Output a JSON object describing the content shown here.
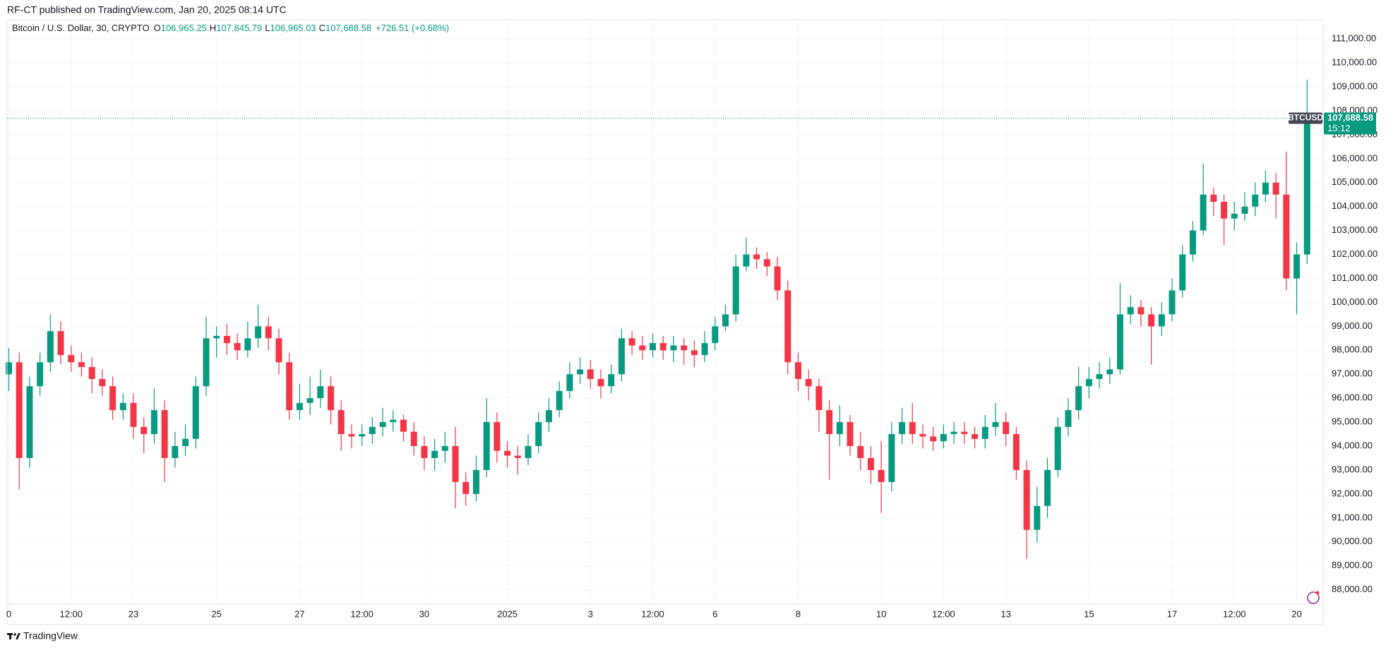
{
  "header": {
    "title": "RF-CT published on TradingView.com, Jan 20, 2025 08:14 UTC"
  },
  "legend": {
    "symbol": "Bitcoin / U.S. Dollar, 30, CRYPTO",
    "items": [
      {
        "label": "O",
        "value": "106,965.25"
      },
      {
        "label": "H",
        "value": "107,845.79"
      },
      {
        "label": "L",
        "value": "106,965.03"
      },
      {
        "label": "C",
        "value": "107,688.58"
      }
    ],
    "change": "+726.51 (+0.68%)"
  },
  "footer": {
    "brand": "TradingView"
  },
  "chart_data": {
    "type": "candlestick",
    "up_color": "#089981",
    "down_color": "#f23645",
    "grid": true,
    "categories": [
      "0",
      null,
      null,
      null,
      null,
      null,
      "12:00",
      null,
      null,
      null,
      null,
      null,
      "23",
      null,
      null,
      null,
      null,
      null,
      null,
      null,
      "25",
      null,
      null,
      null,
      null,
      null,
      null,
      null,
      "27",
      null,
      null,
      null,
      null,
      null,
      "12:00",
      null,
      null,
      null,
      null,
      null,
      "30",
      null,
      null,
      null,
      null,
      null,
      null,
      null,
      "2025",
      null,
      null,
      null,
      null,
      null,
      null,
      null,
      "3",
      null,
      null,
      null,
      null,
      null,
      "12:00",
      null,
      null,
      null,
      null,
      null,
      "6",
      null,
      null,
      null,
      null,
      null,
      null,
      null,
      "8",
      null,
      null,
      null,
      null,
      null,
      null,
      null,
      "10",
      null,
      null,
      null,
      null,
      null,
      "12:00",
      null,
      null,
      null,
      null,
      null,
      "13",
      null,
      null,
      null,
      null,
      null,
      null,
      null,
      "15",
      null,
      null,
      null,
      null,
      null,
      null,
      null,
      "17",
      null,
      null,
      null,
      null,
      null,
      "12:00",
      null,
      null,
      null,
      null,
      null,
      "20",
      null
    ],
    "open": [
      97000,
      97500,
      93500,
      96500,
      97500,
      98800,
      97800,
      97500,
      97300,
      96800,
      96500,
      95500,
      95800,
      94800,
      94500,
      95500,
      93500,
      94000,
      94300,
      96500,
      98500,
      98600,
      98300,
      98000,
      98500,
      99000,
      98500,
      97500,
      95500,
      95800,
      96000,
      96500,
      95500,
      94500,
      94400,
      94500,
      94800,
      95000,
      95100,
      94600,
      94000,
      93500,
      93800,
      94000,
      92500,
      92000,
      93000,
      95000,
      93800,
      93600,
      93500,
      94000,
      95000,
      95500,
      96300,
      97000,
      97200,
      96800,
      96500,
      97000,
      98500,
      98200,
      98000,
      98300,
      98000,
      98200,
      98000,
      97800,
      98300,
      99000,
      99500,
      101500,
      102000,
      101800,
      101500,
      100500,
      97500,
      96800,
      96500,
      95500,
      94500,
      95000,
      94000,
      93500,
      93000,
      92500,
      94500,
      95000,
      94500,
      94400,
      94200,
      94500,
      94600,
      94500,
      94300,
      94800,
      95000,
      94500,
      93000,
      90500,
      91500,
      93000,
      94800,
      95500,
      96500,
      96800,
      97000,
      97200,
      99500,
      99800,
      99500,
      99000,
      99500,
      100500,
      102000,
      103000,
      104500,
      104200,
      103500,
      103700,
      104000,
      104500,
      105000,
      104500,
      101000,
      102000
    ],
    "high": [
      98100,
      97900,
      96900,
      97900,
      99500,
      99200,
      98200,
      97900,
      97700,
      97200,
      96900,
      96200,
      96200,
      95200,
      96400,
      95900,
      94600,
      94900,
      96900,
      99400,
      99000,
      99100,
      98700,
      99200,
      99900,
      99400,
      98900,
      97900,
      96600,
      96900,
      97200,
      96900,
      95900,
      94900,
      94900,
      95200,
      95600,
      95500,
      95300,
      95000,
      94400,
      94300,
      94600,
      94800,
      92900,
      93600,
      96000,
      95400,
      94200,
      94000,
      94500,
      95400,
      96000,
      96700,
      97500,
      97700,
      97600,
      97200,
      97400,
      98900,
      98800,
      98600,
      98700,
      98600,
      98600,
      98500,
      98400,
      98800,
      99400,
      99900,
      102000,
      102700,
      102300,
      102100,
      101900,
      100900,
      97900,
      97200,
      96800,
      95900,
      95700,
      95300,
      94600,
      94000,
      94200,
      95000,
      95600,
      95800,
      94900,
      94800,
      94900,
      95000,
      95000,
      94800,
      95300,
      95800,
      95400,
      94800,
      93400,
      92300,
      93500,
      95200,
      96000,
      97300,
      97300,
      97500,
      97700,
      100800,
      100300,
      100100,
      99800,
      100000,
      101000,
      102400,
      103400,
      105800,
      104800,
      104500,
      104200,
      104600,
      105000,
      105500,
      105400,
      106300,
      102500,
      109300
    ],
    "low": [
      96300,
      92200,
      93100,
      96100,
      97100,
      97400,
      97100,
      96900,
      96200,
      96100,
      95100,
      95100,
      94300,
      93700,
      94100,
      92500,
      93100,
      93600,
      93900,
      96100,
      97700,
      97800,
      97600,
      97700,
      98100,
      98000,
      97000,
      95100,
      95100,
      95300,
      95600,
      94900,
      93800,
      93900,
      94000,
      94100,
      94400,
      94600,
      94200,
      93600,
      93000,
      93000,
      93300,
      91400,
      91500,
      91700,
      92700,
      93300,
      93100,
      92800,
      93200,
      93700,
      94600,
      95200,
      96000,
      96600,
      96400,
      96000,
      96200,
      96700,
      97800,
      97600,
      97700,
      97600,
      97500,
      97400,
      97300,
      97500,
      98000,
      98800,
      99200,
      101300,
      101400,
      101100,
      100100,
      97000,
      96300,
      95900,
      94600,
      92600,
      94000,
      93600,
      93000,
      92400,
      91200,
      92100,
      94100,
      94100,
      93900,
      93800,
      93900,
      94100,
      94100,
      93900,
      93900,
      94400,
      94000,
      92600,
      89300,
      90000,
      91000,
      92700,
      94400,
      95100,
      96000,
      96400,
      96600,
      97000,
      99100,
      99000,
      97400,
      98600,
      99200,
      100200,
      101700,
      102800,
      103600,
      102400,
      103000,
      103400,
      103600,
      104200,
      103500,
      100500,
      99500,
      101600
    ],
    "close": [
      97500,
      93500,
      96500,
      97500,
      98800,
      97800,
      97500,
      97300,
      96800,
      96500,
      95500,
      95800,
      94800,
      94500,
      95500,
      93500,
      94000,
      94300,
      96500,
      98500,
      98600,
      98300,
      98000,
      98500,
      99000,
      98500,
      97500,
      95500,
      95800,
      96000,
      96500,
      95500,
      94500,
      94400,
      94500,
      94800,
      95000,
      95100,
      94600,
      94000,
      93500,
      93800,
      94000,
      92500,
      92000,
      93000,
      95000,
      93800,
      93600,
      93500,
      94000,
      95000,
      95500,
      96300,
      97000,
      97200,
      96800,
      96500,
      97000,
      98500,
      98200,
      98000,
      98300,
      98000,
      98200,
      98000,
      97800,
      98300,
      99000,
      99500,
      101500,
      102000,
      101800,
      101500,
      100500,
      97500,
      96800,
      96500,
      95500,
      94500,
      95000,
      94000,
      93500,
      93000,
      92500,
      94500,
      95000,
      94500,
      94400,
      94200,
      94500,
      94600,
      94500,
      94300,
      94800,
      95000,
      94500,
      93000,
      90500,
      91500,
      93000,
      94800,
      95500,
      96500,
      96800,
      97000,
      97200,
      99500,
      99800,
      99500,
      99000,
      99500,
      100500,
      102000,
      103000,
      104500,
      104200,
      103500,
      103700,
      104000,
      104500,
      105000,
      104500,
      101000,
      102000,
      107688.58
    ],
    "ylim": [
      87400,
      111800
    ],
    "yticks": [
      {
        "value": 88000,
        "label": "88,000.00"
      },
      {
        "value": 89000,
        "label": "89,000.00"
      },
      {
        "value": 90000,
        "label": "90,000.00"
      },
      {
        "value": 91000,
        "label": "91,000.00"
      },
      {
        "value": 92000,
        "label": "92,000.00"
      },
      {
        "value": 93000,
        "label": "93,000.00"
      },
      {
        "value": 94000,
        "label": "94,000.00"
      },
      {
        "value": 95000,
        "label": "95,000.00"
      },
      {
        "value": 96000,
        "label": "96,000.00"
      },
      {
        "value": 97000,
        "label": "97,000.00"
      },
      {
        "value": 98000,
        "label": "98,000.00"
      },
      {
        "value": 99000,
        "label": "99,000.00"
      },
      {
        "value": 100000,
        "label": "100,000.00"
      },
      {
        "value": 101000,
        "label": "101,000.00"
      },
      {
        "value": 102000,
        "label": "102,000.00"
      },
      {
        "value": 103000,
        "label": "103,000.00"
      },
      {
        "value": 104000,
        "label": "104,000.00"
      },
      {
        "value": 105000,
        "label": "105,000.00"
      },
      {
        "value": 106000,
        "label": "106,000.00"
      },
      {
        "value": 107000,
        "label": "107,000.00"
      },
      {
        "value": 108000,
        "label": "108,000.00"
      },
      {
        "value": 109000,
        "label": "109,000.00"
      },
      {
        "value": 110000,
        "label": "110,000.00"
      },
      {
        "value": 111000,
        "label": "111,000.00"
      }
    ],
    "price_tag": {
      "symbol": "BTCUSD",
      "value": 107688.58,
      "label": "107,688.58",
      "countdown": "15:12"
    }
  }
}
